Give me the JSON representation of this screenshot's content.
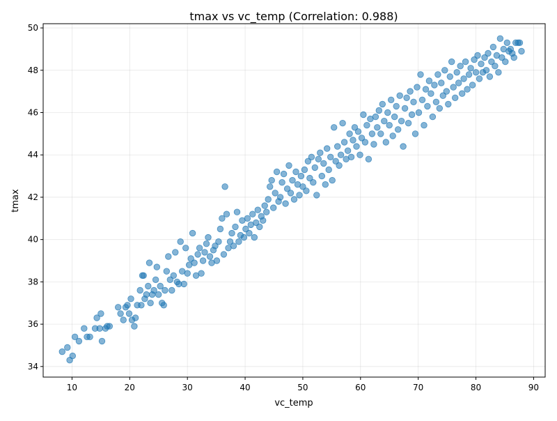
{
  "chart_data": {
    "type": "scatter",
    "title": "tmax vs vc_temp (Correlation: 0.988)",
    "xlabel": "vc_temp",
    "ylabel": "tmax",
    "xlim": [
      5,
      92
    ],
    "ylim": [
      33.5,
      50.2
    ],
    "x_ticks": [
      10,
      20,
      30,
      40,
      50,
      60,
      70,
      80,
      90
    ],
    "y_ticks": [
      34,
      36,
      38,
      40,
      42,
      44,
      46,
      48,
      50
    ],
    "grid": true,
    "marker_color": "#1f77b4",
    "marker_alpha": 0.55,
    "series": [
      {
        "values": [
          [
            8.3,
            34.7
          ],
          [
            9.2,
            34.9
          ],
          [
            9.6,
            34.3
          ],
          [
            10.1,
            34.5
          ],
          [
            10.5,
            35.4
          ],
          [
            11.2,
            35.2
          ],
          [
            12.1,
            35.8
          ],
          [
            12.6,
            35.4
          ],
          [
            13.1,
            35.4
          ],
          [
            14.0,
            35.8
          ],
          [
            14.3,
            36.3
          ],
          [
            14.8,
            35.8
          ],
          [
            15.0,
            36.5
          ],
          [
            15.2,
            35.2
          ],
          [
            15.8,
            35.8
          ],
          [
            16.1,
            35.9
          ],
          [
            16.5,
            35.9
          ],
          [
            18.0,
            36.8
          ],
          [
            18.4,
            36.5
          ],
          [
            18.9,
            36.2
          ],
          [
            19.3,
            36.8
          ],
          [
            19.6,
            36.9
          ],
          [
            19.9,
            36.5
          ],
          [
            20.2,
            37.2
          ],
          [
            20.4,
            36.2
          ],
          [
            20.8,
            35.9
          ],
          [
            21.0,
            36.3
          ],
          [
            21.3,
            36.9
          ],
          [
            21.8,
            37.6
          ],
          [
            22.0,
            36.9
          ],
          [
            22.2,
            38.3
          ],
          [
            22.4,
            38.3
          ],
          [
            22.6,
            37.2
          ],
          [
            22.9,
            37.4
          ],
          [
            23.2,
            37.8
          ],
          [
            23.4,
            38.9
          ],
          [
            23.6,
            37.0
          ],
          [
            23.9,
            37.4
          ],
          [
            24.2,
            37.6
          ],
          [
            24.5,
            38.1
          ],
          [
            24.7,
            38.7
          ],
          [
            25.0,
            37.4
          ],
          [
            25.3,
            37.8
          ],
          [
            25.6,
            37.0
          ],
          [
            25.9,
            36.9
          ],
          [
            26.1,
            37.6
          ],
          [
            26.4,
            38.5
          ],
          [
            26.7,
            39.2
          ],
          [
            27.0,
            38.1
          ],
          [
            27.3,
            37.6
          ],
          [
            27.6,
            38.3
          ],
          [
            27.9,
            39.4
          ],
          [
            28.2,
            38.0
          ],
          [
            28.5,
            37.9
          ],
          [
            28.8,
            39.9
          ],
          [
            29.1,
            38.5
          ],
          [
            29.4,
            37.9
          ],
          [
            29.7,
            39.6
          ],
          [
            30.0,
            38.4
          ],
          [
            30.3,
            38.8
          ],
          [
            30.6,
            39.1
          ],
          [
            30.9,
            40.3
          ],
          [
            31.2,
            38.9
          ],
          [
            31.5,
            38.3
          ],
          [
            31.8,
            39.3
          ],
          [
            32.1,
            39.6
          ],
          [
            32.4,
            38.4
          ],
          [
            32.7,
            39.0
          ],
          [
            33.0,
            39.4
          ],
          [
            33.3,
            39.8
          ],
          [
            33.6,
            40.1
          ],
          [
            33.9,
            39.2
          ],
          [
            34.2,
            38.9
          ],
          [
            34.5,
            39.5
          ],
          [
            34.8,
            39.7
          ],
          [
            35.1,
            39.0
          ],
          [
            35.4,
            39.9
          ],
          [
            35.7,
            40.5
          ],
          [
            36.0,
            41.0
          ],
          [
            36.3,
            39.3
          ],
          [
            36.5,
            42.5
          ],
          [
            36.8,
            41.2
          ],
          [
            37.1,
            39.6
          ],
          [
            37.4,
            39.9
          ],
          [
            37.7,
            40.3
          ],
          [
            38.0,
            39.7
          ],
          [
            38.3,
            40.6
          ],
          [
            38.6,
            41.3
          ],
          [
            38.9,
            39.9
          ],
          [
            39.2,
            40.2
          ],
          [
            39.5,
            40.9
          ],
          [
            39.8,
            40.1
          ],
          [
            40.1,
            40.5
          ],
          [
            40.4,
            41.0
          ],
          [
            40.7,
            40.3
          ],
          [
            41.0,
            40.7
          ],
          [
            41.3,
            41.2
          ],
          [
            41.6,
            40.1
          ],
          [
            41.9,
            40.8
          ],
          [
            42.2,
            41.4
          ],
          [
            42.5,
            40.6
          ],
          [
            42.8,
            41.1
          ],
          [
            43.1,
            40.9
          ],
          [
            43.4,
            41.6
          ],
          [
            43.7,
            41.3
          ],
          [
            44.0,
            41.9
          ],
          [
            44.3,
            42.5
          ],
          [
            44.6,
            42.8
          ],
          [
            44.9,
            41.5
          ],
          [
            45.2,
            42.2
          ],
          [
            45.5,
            43.2
          ],
          [
            45.8,
            41.8
          ],
          [
            46.1,
            42.0
          ],
          [
            46.4,
            42.7
          ],
          [
            46.7,
            43.1
          ],
          [
            47.0,
            41.7
          ],
          [
            47.3,
            42.4
          ],
          [
            47.6,
            43.5
          ],
          [
            47.9,
            42.2
          ],
          [
            48.2,
            42.8
          ],
          [
            48.5,
            41.9
          ],
          [
            48.8,
            43.2
          ],
          [
            49.1,
            42.6
          ],
          [
            49.4,
            42.1
          ],
          [
            49.7,
            43.0
          ],
          [
            50.0,
            42.5
          ],
          [
            50.3,
            43.3
          ],
          [
            50.6,
            42.3
          ],
          [
            50.9,
            43.7
          ],
          [
            51.2,
            42.9
          ],
          [
            51.5,
            43.9
          ],
          [
            51.8,
            42.7
          ],
          [
            52.1,
            43.4
          ],
          [
            52.4,
            42.1
          ],
          [
            52.7,
            43.8
          ],
          [
            53.0,
            44.1
          ],
          [
            53.3,
            43.0
          ],
          [
            53.6,
            43.6
          ],
          [
            53.9,
            42.6
          ],
          [
            54.2,
            44.3
          ],
          [
            54.5,
            43.3
          ],
          [
            54.8,
            43.9
          ],
          [
            55.1,
            42.8
          ],
          [
            55.4,
            45.3
          ],
          [
            55.7,
            43.7
          ],
          [
            56.0,
            44.4
          ],
          [
            56.3,
            43.5
          ],
          [
            56.6,
            44.0
          ],
          [
            56.9,
            45.5
          ],
          [
            57.2,
            44.6
          ],
          [
            57.5,
            43.8
          ],
          [
            57.8,
            44.2
          ],
          [
            58.1,
            45.0
          ],
          [
            58.4,
            43.9
          ],
          [
            58.7,
            44.7
          ],
          [
            59.0,
            45.3
          ],
          [
            59.3,
            44.4
          ],
          [
            59.6,
            45.1
          ],
          [
            59.9,
            44.0
          ],
          [
            60.2,
            44.8
          ],
          [
            60.5,
            45.9
          ],
          [
            60.8,
            44.6
          ],
          [
            61.1,
            45.4
          ],
          [
            61.4,
            43.8
          ],
          [
            61.7,
            45.7
          ],
          [
            62.0,
            45.0
          ],
          [
            62.3,
            44.5
          ],
          [
            62.6,
            45.8
          ],
          [
            62.9,
            45.3
          ],
          [
            63.2,
            46.1
          ],
          [
            63.5,
            45.0
          ],
          [
            63.8,
            46.4
          ],
          [
            64.1,
            45.6
          ],
          [
            64.4,
            44.6
          ],
          [
            64.7,
            46.0
          ],
          [
            65.0,
            45.4
          ],
          [
            65.3,
            46.6
          ],
          [
            65.6,
            44.9
          ],
          [
            65.9,
            45.8
          ],
          [
            66.2,
            46.3
          ],
          [
            66.5,
            45.2
          ],
          [
            66.8,
            46.8
          ],
          [
            67.1,
            45.6
          ],
          [
            67.4,
            44.4
          ],
          [
            67.7,
            46.2
          ],
          [
            68.0,
            46.7
          ],
          [
            68.3,
            45.5
          ],
          [
            68.6,
            47.0
          ],
          [
            68.9,
            45.9
          ],
          [
            69.2,
            46.5
          ],
          [
            69.5,
            45.0
          ],
          [
            69.8,
            47.2
          ],
          [
            70.1,
            46.0
          ],
          [
            70.4,
            47.8
          ],
          [
            70.7,
            46.6
          ],
          [
            71.0,
            45.4
          ],
          [
            71.3,
            47.1
          ],
          [
            71.6,
            46.3
          ],
          [
            71.9,
            47.5
          ],
          [
            72.2,
            46.9
          ],
          [
            72.5,
            45.8
          ],
          [
            72.8,
            47.3
          ],
          [
            73.1,
            46.5
          ],
          [
            73.4,
            47.8
          ],
          [
            73.7,
            46.2
          ],
          [
            74.0,
            47.4
          ],
          [
            74.3,
            46.8
          ],
          [
            74.6,
            48.0
          ],
          [
            74.9,
            47.0
          ],
          [
            75.2,
            46.4
          ],
          [
            75.5,
            47.7
          ],
          [
            75.8,
            48.4
          ],
          [
            76.1,
            47.2
          ],
          [
            76.4,
            46.7
          ],
          [
            76.7,
            47.9
          ],
          [
            77.0,
            47.4
          ],
          [
            77.3,
            48.2
          ],
          [
            77.6,
            46.9
          ],
          [
            77.9,
            47.6
          ],
          [
            78.2,
            48.4
          ],
          [
            78.5,
            47.1
          ],
          [
            78.8,
            47.8
          ],
          [
            79.1,
            48.1
          ],
          [
            79.4,
            47.3
          ],
          [
            79.7,
            48.5
          ],
          [
            80.0,
            47.9
          ],
          [
            80.3,
            48.7
          ],
          [
            80.6,
            47.6
          ],
          [
            80.9,
            48.3
          ],
          [
            81.2,
            47.9
          ],
          [
            81.5,
            48.6
          ],
          [
            81.8,
            48.0
          ],
          [
            82.1,
            48.8
          ],
          [
            82.4,
            47.7
          ],
          [
            82.7,
            48.4
          ],
          [
            83.0,
            49.1
          ],
          [
            83.3,
            48.2
          ],
          [
            83.6,
            48.7
          ],
          [
            83.9,
            47.9
          ],
          [
            84.2,
            49.5
          ],
          [
            84.5,
            48.6
          ],
          [
            84.8,
            49.0
          ],
          [
            85.1,
            48.4
          ],
          [
            85.4,
            49.3
          ],
          [
            85.7,
            48.9
          ],
          [
            86.0,
            49.0
          ],
          [
            86.3,
            48.8
          ],
          [
            86.6,
            48.6
          ],
          [
            86.9,
            49.3
          ],
          [
            87.3,
            49.3
          ],
          [
            87.6,
            49.3
          ],
          [
            87.9,
            48.9
          ]
        ]
      }
    ]
  }
}
